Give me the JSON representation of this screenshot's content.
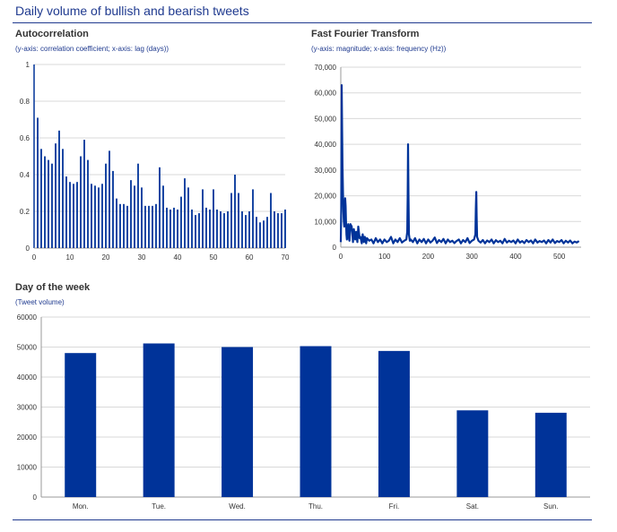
{
  "page": {
    "title": "Daily volume of bullish and bearish tweets"
  },
  "colors": {
    "accent": "#003399",
    "grid": "#d9d9d9",
    "axis": "#999999"
  },
  "chart_data": [
    {
      "id": "autocorrelation",
      "type": "bar",
      "title": "Autocorrelation",
      "subtitle": "(y-axis: correlation coefficient; x-axis: lag (days))",
      "xlabel": "lag (days)",
      "ylabel": "correlation coefficient",
      "xlim": [
        0,
        70
      ],
      "ylim": [
        0,
        1
      ],
      "xticks": [
        "0",
        "10",
        "20",
        "30",
        "40",
        "50",
        "60",
        "70"
      ],
      "yticks": [
        "0",
        "0.2",
        "0.4",
        "0.6",
        "0.8",
        "1"
      ],
      "x": [
        1,
        2,
        3,
        4,
        5,
        6,
        7,
        8,
        9,
        10,
        11,
        12,
        13,
        14,
        15,
        16,
        17,
        18,
        19,
        20,
        21,
        22,
        23,
        24,
        25,
        26,
        27,
        28,
        29,
        30,
        31,
        32,
        33,
        34,
        35,
        36,
        37,
        38,
        39,
        40,
        41,
        42,
        43,
        44,
        45,
        46,
        47,
        48,
        49,
        50,
        51,
        52,
        53,
        54,
        55,
        56,
        57,
        58,
        59,
        60,
        61,
        62,
        63,
        64,
        65,
        66,
        67,
        68,
        69,
        70
      ],
      "values": [
        0.71,
        0.54,
        0.5,
        0.48,
        0.46,
        0.57,
        0.64,
        0.54,
        0.39,
        0.36,
        0.35,
        0.36,
        0.5,
        0.59,
        0.48,
        0.35,
        0.34,
        0.33,
        0.35,
        0.46,
        0.53,
        0.42,
        0.27,
        0.24,
        0.24,
        0.23,
        0.37,
        0.34,
        0.46,
        0.33,
        0.23,
        0.23,
        0.23,
        0.24,
        0.44,
        0.34,
        0.22,
        0.21,
        0.22,
        0.21,
        0.28,
        0.38,
        0.33,
        0.21,
        0.18,
        0.19,
        0.32,
        0.22,
        0.21,
        0.32,
        0.21,
        0.2,
        0.19,
        0.2,
        0.3,
        0.4,
        0.3,
        0.2,
        0.18,
        0.2,
        0.32,
        0.17,
        0.14,
        0.15,
        0.17,
        0.3,
        0.2,
        0.19,
        0.19,
        0.21
      ]
    },
    {
      "id": "fft",
      "type": "line",
      "title": "Fast Fourier Transform",
      "subtitle": "(y-axis: magnitude; x-axis: frequency (Hz))",
      "xlabel": "frequency (Hz)",
      "ylabel": "magnitude",
      "xlim": [
        0,
        550
      ],
      "ylim": [
        0,
        70000
      ],
      "xticks": [
        "0",
        "100",
        "200",
        "300",
        "400",
        "500"
      ],
      "yticks": [
        "0",
        "10,000",
        "20,000",
        "30,000",
        "40,000",
        "50,000",
        "60,000",
        "70,000"
      ],
      "x": [
        0,
        1,
        2,
        3,
        4,
        5,
        6,
        7,
        8,
        9,
        10,
        11,
        12,
        13,
        14,
        15,
        16,
        17,
        18,
        19,
        20,
        22,
        25,
        28,
        30,
        33,
        35,
        38,
        40,
        43,
        45,
        48,
        50,
        53,
        55,
        58,
        60,
        65,
        70,
        75,
        80,
        85,
        90,
        95,
        100,
        105,
        110,
        115,
        120,
        125,
        130,
        135,
        140,
        145,
        150,
        152,
        153,
        154,
        155,
        156,
        158,
        160,
        165,
        170,
        175,
        180,
        185,
        190,
        195,
        200,
        205,
        210,
        215,
        220,
        225,
        230,
        235,
        240,
        245,
        250,
        255,
        260,
        265,
        270,
        275,
        280,
        285,
        290,
        295,
        300,
        305,
        308,
        309,
        310,
        311,
        312,
        315,
        320,
        325,
        330,
        335,
        340,
        345,
        350,
        355,
        360,
        365,
        370,
        375,
        380,
        385,
        390,
        395,
        400,
        405,
        410,
        415,
        420,
        425,
        430,
        435,
        440,
        445,
        450,
        455,
        460,
        465,
        470,
        475,
        480,
        485,
        490,
        495,
        500,
        505,
        510,
        515,
        520,
        525,
        530,
        535,
        540,
        545
      ],
      "values": [
        2000,
        15000,
        63000,
        45000,
        32000,
        22000,
        14000,
        10000,
        8000,
        12000,
        19000,
        16000,
        10000,
        5000,
        3000,
        4000,
        8000,
        9000,
        6000,
        3000,
        2500,
        9000,
        8000,
        2000,
        7000,
        3000,
        6000,
        2000,
        8000,
        3500,
        4000,
        1500,
        5000,
        2000,
        4000,
        1500,
        3500,
        2500,
        3000,
        1500,
        3500,
        2000,
        3000,
        1500,
        3000,
        2000,
        2500,
        4000,
        1500,
        3000,
        2000,
        3500,
        1800,
        2500,
        3000,
        6000,
        20000,
        40000,
        20000,
        5000,
        2500,
        3000,
        2000,
        3500,
        1500,
        3000,
        2000,
        3200,
        1500,
        3000,
        1800,
        2500,
        3800,
        1600,
        2800,
        2000,
        3200,
        1500,
        3000,
        2000,
        2500,
        1600,
        2400,
        3000,
        1500,
        2800,
        2000,
        3500,
        1600,
        2500,
        3000,
        5000,
        15000,
        21500,
        12000,
        4000,
        2500,
        1800,
        2800,
        1500,
        2600,
        2000,
        3000,
        1500,
        2700,
        2000,
        2500,
        1500,
        3200,
        1800,
        2500,
        2000,
        2600,
        1500,
        3000,
        1800,
        2400,
        1600,
        2800,
        2000,
        2600,
        1500,
        3000,
        1800,
        2400,
        2000,
        2600,
        1500,
        2800,
        1800,
        3000,
        1600,
        2400,
        2000,
        2800,
        1500,
        2500,
        1800,
        2600,
        1500,
        2200,
        1800,
        2400
      ]
    },
    {
      "id": "day-of-week",
      "type": "bar",
      "title": "Day of the week",
      "subtitle": "(Tweet volume)",
      "ylabel": "Tweet volume",
      "ylim": [
        0,
        60000
      ],
      "yticks": [
        "0",
        "10000",
        "20000",
        "30000",
        "40000",
        "50000",
        "60000"
      ],
      "categories": [
        "Mon.",
        "Tue.",
        "Wed.",
        "Thu.",
        "Fri.",
        "Sat.",
        "Sun."
      ],
      "values": [
        48000,
        51200,
        50000,
        50300,
        48700,
        28900,
        28100
      ]
    }
  ]
}
